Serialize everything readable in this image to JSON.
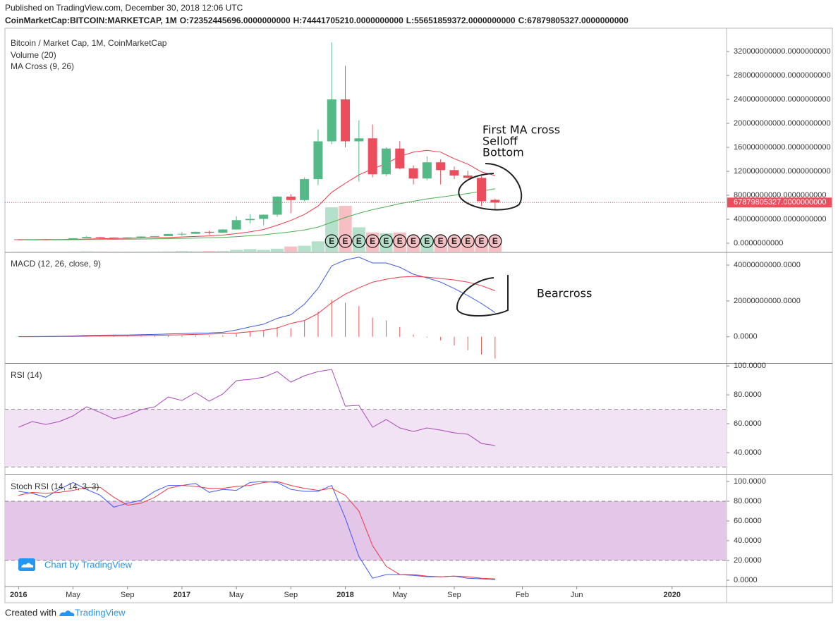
{
  "header": {
    "published": "Published on TradingView.com, December 30, 2018 12:06 UTC",
    "symbol": "CoinMarketCap:BITCOIN:MARKETCAP, 1M",
    "ohlc": [
      {
        "key": "O:",
        "value": "72352445696.0000000000"
      },
      {
        "key": "H:",
        "value": "74441705210.0000000000"
      },
      {
        "key": "L:",
        "value": "55651859372.0000000000"
      },
      {
        "key": "C:",
        "value": "67879805327.0000000000"
      }
    ]
  },
  "annotations": {
    "top": [
      "First MA cross",
      "Selloff",
      "Bottom"
    ],
    "macd": "Bearcross"
  },
  "watermark": "Chart by TradingView",
  "footer": {
    "created": "Created with",
    "brand": "TradingView"
  },
  "chart_data": [
    {
      "type": "candlestick",
      "title": "Bitcoin / Market Cap, 1M, CoinMarketCap",
      "x": [
        "2016-01",
        "2016-02",
        "2016-03",
        "2016-04",
        "2016-05",
        "2016-06",
        "2016-07",
        "2016-08",
        "2016-09",
        "2016-10",
        "2016-11",
        "2016-12",
        "2017-01",
        "2017-02",
        "2017-03",
        "2017-04",
        "2017-05",
        "2017-06",
        "2017-07",
        "2017-08",
        "2017-09",
        "2017-10",
        "2017-11",
        "2017-12",
        "2018-01",
        "2018-02",
        "2018-03",
        "2018-04",
        "2018-05",
        "2018-06",
        "2018-07",
        "2018-08",
        "2018-09",
        "2018-10",
        "2018-11",
        "2018-12"
      ],
      "open": [
        6500000000.0,
        5700000000.0,
        6600000000.0,
        6500000000.0,
        7000000000.0,
        8400000000.0,
        10500000000.0,
        9500000000.0,
        9400000000.0,
        9700000000.0,
        11200000000.0,
        11900000000.0,
        15500000000.0,
        15700000000.0,
        19000000000.0,
        17500000000.0,
        22900000000.0,
        38500000000.0,
        40600000000.0,
        47600000000.0,
        77800000000.0,
        72000000000.0,
        107000000000.0,
        170000000000.0,
        240000000000.0,
        170000000000.0,
        175000000000.0,
        115000000000.0,
        158000000000.0,
        125000000000.0,
        108000000000.0,
        135000000000.0,
        122000000000.0,
        113000000000.0,
        109000000000.0,
        72352445696
      ],
      "high": [
        7000000000.0,
        6800000000.0,
        6900000000.0,
        7200000000.0,
        8500000000.0,
        12000000000.0,
        10800000000.0,
        9800000000.0,
        9900000000.0,
        11400000000.0,
        12000000000.0,
        15600000000.0,
        18600000000.0,
        19400000000.0,
        21000000000.0,
        23500000000.0,
        45000000000.0,
        48500000000.0,
        48000000000.0,
        78500000000.0,
        82000000000.0,
        110000000000.0,
        190000000000.0,
        335000000000.0,
        296000000000.0,
        205000000000.0,
        198000000000.0,
        160000000000.0,
        170000000000.0,
        130000000000.0,
        145000000000.0,
        140000000000.0,
        128000000000.0,
        121000000000.0,
        112000000000.0,
        74441705210
      ],
      "low": [
        5500000000.0,
        5700000000.0,
        6200000000.0,
        6400000000.0,
        6900000000.0,
        8300000000.0,
        9000000000.0,
        7800000000.0,
        9200000000.0,
        9600000000.0,
        11000000000.0,
        11800000000.0,
        12500000000.0,
        15500000000.0,
        14500000000.0,
        17000000000.0,
        22500000000.0,
        33000000000.0,
        30000000000.0,
        44000000000.0,
        50000000000.0,
        70000000000.0,
        97000000000.0,
        165000000000.0,
        160000000000.0,
        103000000000.0,
        110000000000.0,
        112000000000.0,
        123000000000.0,
        98000000000.0,
        105000000000.0,
        98000000000.0,
        107000000000.0,
        108000000000.0,
        62000000000.0,
        55651859372
      ],
      "close": [
        5700000000.0,
        6600000000.0,
        6500000000.0,
        7000000000.0,
        8400000000.0,
        10500000000.0,
        9500000000.0,
        9400000000.0,
        9700000000.0,
        11200000000.0,
        11900000000.0,
        15500000000.0,
        15700000000.0,
        19000000000.0,
        17500000000.0,
        22900000000.0,
        38500000000.0,
        40600000000.0,
        47600000000.0,
        77800000000.0,
        72000000000.0,
        107000000000.0,
        170000000000.0,
        240000000000.0,
        170000000000.0,
        175000000000.0,
        115000000000.0,
        158000000000.0,
        125000000000.0,
        108000000000.0,
        135000000000.0,
        122000000000.0,
        113000000000.0,
        109000000000.0,
        70000000000.0,
        67879805327
      ],
      "up_color": "#53b987",
      "down_color": "#eb4d5c",
      "volume": {
        "name": "Volume (20)",
        "up_color": "#b5e0cb",
        "down_color": "#f6bfc4",
        "values": [
          100000000.0,
          150000000.0,
          150000000.0,
          120000000.0,
          200000000.0,
          600000000.0,
          300000000.0,
          200000000.0,
          200000000.0,
          250000000.0,
          300000000.0,
          500000000.0,
          900000000.0,
          600000000.0,
          1000000000.0,
          900000000.0,
          2500000000.0,
          3500000000.0,
          2500000000.0,
          4000000000.0,
          7000000000.0,
          8000000000.0,
          14000000000.0,
          60000000000.0,
          62000000000.0,
          33000000000.0,
          26000000000.0,
          25000000000.0,
          26000000000.0,
          17000000000.0,
          18000000000.0,
          17000000000.0,
          16000000000.0,
          15000000000.0,
          18000000000.0,
          17000000000.0
        ]
      },
      "indicator": "MA Cross (9, 26)",
      "series": [
        {
          "color": "#f23645",
          "values": [
            6000000000.0,
            6000000000.0,
            6100000000.0,
            6300000000.0,
            6600000000.0,
            7000000000.0,
            7500000000.0,
            7900000000.0,
            8300000000.0,
            8800000000.0,
            9300000000.0,
            9800000000.0,
            10500000000.0,
            11300000000.0,
            12200000000.0,
            13500000000.0,
            16000000000.0,
            19000000000.0,
            23000000000.0,
            30000000000.0,
            38000000000.0,
            48000000000.0,
            62000000000.0,
            85000000000.0,
            100000000000.0,
            114000000000.0,
            124000000000.0,
            133000000000.0,
            145000000000.0,
            152000000000.0,
            155000000000.0,
            152000000000.0,
            141000000000.0,
            132000000000.0,
            119000000000.0,
            113000000000.0
          ]
        },
        {
          "color": "#4caf50",
          "values": [
            5500000000.0,
            5600000000.0,
            5700000000.0,
            5800000000.0,
            5900000000.0,
            6100000000.0,
            6300000000.0,
            6500000000.0,
            6700000000.0,
            7000000000.0,
            7300000000.0,
            7700000000.0,
            8100000000.0,
            8600000000.0,
            9100000000.0,
            9800000000.0,
            11000000000.0,
            12500000000.0,
            14000000000.0,
            16500000000.0,
            19000000000.0,
            22000000000.0,
            27000000000.0,
            35000000000.0,
            43000000000.0,
            50000000000.0,
            56000000000.0,
            61000000000.0,
            66000000000.0,
            70000000000.0,
            74000000000.0,
            77000000000.0,
            80000000000.0,
            83000000000.0,
            87000000000.0,
            91000000000.0
          ]
        }
      ],
      "events": {
        "x": [
          "2017-12",
          "2018-01",
          "2018-02",
          "2018-03",
          "2018-04",
          "2018-05",
          "2018-06",
          "2018-07",
          "2018-08",
          "2018-09",
          "2018-10",
          "2018-11",
          "2018-12"
        ],
        "labels": [
          "E",
          "E",
          "E",
          "E",
          "E",
          "E",
          "E",
          "E",
          "E",
          "E",
          "E",
          "E",
          "E"
        ]
      },
      "last_price": {
        "value": 67879805327,
        "label": "67879805327.0000000000",
        "color": "#eb4d5c"
      },
      "xlim": [
        "2015-12",
        "2020-05"
      ],
      "ylim": [
        -14100000000,
        358800000000
      ],
      "yticks": [
        {
          "value": 0,
          "label": "0.0000000000"
        },
        {
          "value": 40000000000,
          "label": "40000000000.0000000000"
        },
        {
          "value": 80000000000,
          "label": "80000000000.0000000000"
        },
        {
          "value": 120000000000,
          "label": "120000000000.0000000000"
        },
        {
          "value": 160000000000,
          "label": "160000000000.0000000000"
        },
        {
          "value": 200000000000,
          "label": "200000000000.0000000000"
        },
        {
          "value": 240000000000,
          "label": "240000000000.0000000000"
        },
        {
          "value": 280000000000,
          "label": "280000000000.0000000000"
        },
        {
          "value": 320000000000,
          "label": "320000000000.0000000000"
        }
      ]
    },
    {
      "type": "line",
      "title": "MACD (12, 26, close, 9)",
      "x": [
        "2016-01",
        "2016-02",
        "2016-03",
        "2016-04",
        "2016-05",
        "2016-06",
        "2016-07",
        "2016-08",
        "2016-09",
        "2016-10",
        "2016-11",
        "2016-12",
        "2017-01",
        "2017-02",
        "2017-03",
        "2017-04",
        "2017-05",
        "2017-06",
        "2017-07",
        "2017-08",
        "2017-09",
        "2017-10",
        "2017-11",
        "2017-12",
        "2018-01",
        "2018-02",
        "2018-03",
        "2018-04",
        "2018-05",
        "2018-06",
        "2018-07",
        "2018-08",
        "2018-09",
        "2018-10",
        "2018-11",
        "2018-12"
      ],
      "series": [
        {
          "color": "#3f5bdc",
          "values": [
            100000000.0,
            150000000.0,
            200000000.0,
            300000000.0,
            450000000.0,
            750000000.0,
            900000000.0,
            950000000.0,
            1000000000.0,
            1150000000.0,
            1300000000.0,
            1600000000.0,
            1800000000.0,
            2100000000.0,
            2200000000.0,
            2500000000.0,
            3800000000.0,
            5500000000.0,
            7000000000.0,
            10300000000.0,
            12300000000.0,
            18200000000.0,
            27000000000.0,
            39600000000.0,
            42800000000.0,
            44400000000.0,
            41200000000.0,
            41200000000.0,
            38800000000.0,
            34900000000.0,
            32900000000.0,
            30500000000.0,
            26900000000.0,
            23000000000.0,
            18600000000.0,
            13500000000.0
          ]
        },
        {
          "color": "#f23645",
          "values": [
            50000000.0,
            70000000.0,
            100000000.0,
            150000000.0,
            200000000.0,
            300000000.0,
            400000000.0,
            500000000.0,
            600000000.0,
            700000000.0,
            800000000.0,
            950000000.0,
            1100000000.0,
            1300000000.0,
            1500000000.0,
            1700000000.0,
            2100000000.0,
            2800000000.0,
            3600000000.0,
            4900000000.0,
            7500000000.0,
            9100000000.0,
            13000000000.0,
            19000000000.0,
            23800000000.0,
            27300000000.0,
            30500000000.0,
            32100000000.0,
            33300000000.0,
            33700000000.0,
            33300000000.0,
            32500000000.0,
            31700000000.0,
            30500000000.0,
            28500000000.0,
            25700000000.0
          ]
        }
      ],
      "histogram": {
        "color": "#ef5350",
        "values": [
          50000000.0,
          80000000.0,
          100000000.0,
          150000000.0,
          250000000.0,
          450000000.0,
          500000000.0,
          450000000.0,
          400000000.0,
          450000000.0,
          500000000.0,
          650000000.0,
          700000000.0,
          800000000.0,
          700000000.0,
          800000000.0,
          1700000000.0,
          2700000000.0,
          3400000000.0,
          5400000000.0,
          4800000000.0,
          9100000000.0,
          14000000000.0,
          20600000000.0,
          19000000000.0,
          17100000000.0,
          10700000000.0,
          9100000000.0,
          5500000000.0,
          1200000000.0,
          -400000000.0,
          -2000000000.0,
          -4800000000.0,
          -7500000000.0,
          -9900000000.0,
          -12200000000.0
        ]
      },
      "xlim": [
        "2015-12",
        "2020-05"
      ],
      "ylim": [
        -14650000000,
        46700000000
      ],
      "yticks": [
        {
          "value": 0,
          "label": "0.0000"
        },
        {
          "value": 20000000000,
          "label": "20000000000.0000"
        },
        {
          "value": 40000000000,
          "label": "40000000000.0000"
        }
      ]
    },
    {
      "type": "line",
      "title": "RSI (14)",
      "x": [
        "2016-01",
        "2016-02",
        "2016-03",
        "2016-04",
        "2016-05",
        "2016-06",
        "2016-07",
        "2016-08",
        "2016-09",
        "2016-10",
        "2016-11",
        "2016-12",
        "2017-01",
        "2017-02",
        "2017-03",
        "2017-04",
        "2017-05",
        "2017-06",
        "2017-07",
        "2017-08",
        "2017-09",
        "2017-10",
        "2017-11",
        "2017-12",
        "2018-01",
        "2018-02",
        "2018-03",
        "2018-04",
        "2018-05",
        "2018-06",
        "2018-07",
        "2018-08",
        "2018-09",
        "2018-10",
        "2018-11",
        "2018-12"
      ],
      "series": [
        {
          "color": "#ab47bc",
          "values": [
            57.6,
            61.5,
            59.5,
            61.5,
            65.4,
            71.7,
            67.8,
            63.4,
            65.9,
            69.8,
            71.7,
            78.5,
            76.1,
            81.5,
            75.6,
            80.5,
            89.8,
            90.7,
            92.2,
            96.1,
            88.8,
            93.2,
            96.1,
            97.6,
            72.2,
            72.7,
            57.6,
            62.9,
            57.1,
            54.6,
            57.1,
            55.6,
            53.7,
            52.7,
            46.3,
            44.9
          ]
        }
      ],
      "band": [
        30,
        70
      ],
      "band_color": "#f1e3f3",
      "xlim": [
        "2015-12",
        "2020-05"
      ],
      "ylim": [
        24.9,
        101.5
      ],
      "yticks": [
        {
          "value": 40,
          "label": "40.0000"
        },
        {
          "value": 60,
          "label": "60.0000"
        },
        {
          "value": 80,
          "label": "80.0000"
        },
        {
          "value": 100,
          "label": "100.0000"
        }
      ]
    },
    {
      "type": "line",
      "title": "Stoch RSI (14, 14, 3, 3)",
      "x": [
        "2016-01",
        "2016-02",
        "2016-03",
        "2016-04",
        "2016-05",
        "2016-06",
        "2016-07",
        "2016-08",
        "2016-09",
        "2016-10",
        "2016-11",
        "2016-12",
        "2017-01",
        "2017-02",
        "2017-03",
        "2017-04",
        "2017-05",
        "2017-06",
        "2017-07",
        "2017-08",
        "2017-09",
        "2017-10",
        "2017-11",
        "2017-12",
        "2018-01",
        "2018-02",
        "2018-03",
        "2018-04",
        "2018-05",
        "2018-06",
        "2018-07",
        "2018-08",
        "2018-09",
        "2018-10",
        "2018-11",
        "2018-12"
      ],
      "series": [
        {
          "color": "#3d5afe",
          "values": [
            90,
            88,
            84,
            92,
            99,
            92,
            86,
            74,
            78,
            81,
            90,
            96,
            96,
            98,
            89,
            92,
            91,
            99,
            100,
            99,
            92,
            90,
            90,
            96,
            63,
            24,
            2,
            5.7,
            5.7,
            4.8,
            3.5,
            3.5,
            4.2,
            2,
            1.4,
            0.7
          ]
        },
        {
          "color": "#f23645",
          "values": [
            86,
            89,
            88,
            89,
            91,
            94,
            94,
            84,
            76,
            78,
            84,
            93,
            96,
            95,
            93,
            93,
            95,
            96,
            99,
            100,
            96,
            93,
            91,
            93,
            86,
            70,
            35,
            14,
            5.7,
            5.7,
            4.2,
            3.5,
            4.2,
            3.5,
            2,
            1.4
          ]
        }
      ],
      "band": [
        20,
        80
      ],
      "band_color": "#e3c6e8",
      "xlim": [
        "2015-12",
        "2020-05"
      ],
      "ylim": [
        -6.4,
        106.4
      ],
      "yticks": [
        {
          "value": 0,
          "label": "0.0000"
        },
        {
          "value": 20,
          "label": "20.0000"
        },
        {
          "value": 40,
          "label": "40.0000"
        },
        {
          "value": 60,
          "label": "60.0000"
        },
        {
          "value": 80,
          "label": "80.0000"
        },
        {
          "value": 100,
          "label": "100.0000"
        }
      ],
      "xticks": [
        {
          "value": "2016-01",
          "label": "2016"
        },
        {
          "value": "2016-05",
          "label": "May"
        },
        {
          "value": "2016-09",
          "label": "Sep"
        },
        {
          "value": "2017-01",
          "label": "2017"
        },
        {
          "value": "2017-05",
          "label": "May"
        },
        {
          "value": "2017-09",
          "label": "Sep"
        },
        {
          "value": "2018-01",
          "label": "2018"
        },
        {
          "value": "2018-05",
          "label": "May"
        },
        {
          "value": "2018-09",
          "label": "Sep"
        },
        {
          "value": "2019-02",
          "label": "Feb"
        },
        {
          "value": "2019-06",
          "label": "Jun"
        },
        {
          "value": "2020-01",
          "label": "2020"
        }
      ]
    }
  ]
}
